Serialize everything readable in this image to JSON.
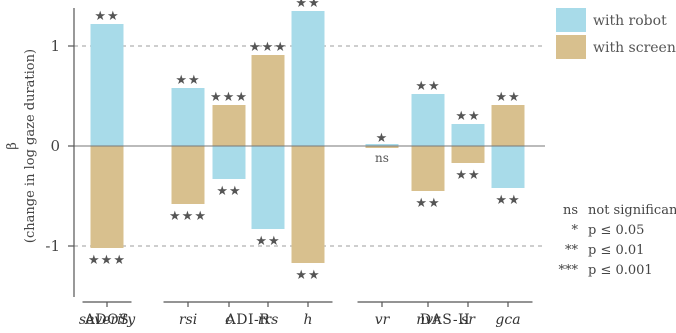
{
  "chart_data": {
    "type": "bar",
    "title": "",
    "ylabel_line1": "β",
    "ylabel_line2": "(change in log gaze duration)",
    "ylim": [
      -1.4,
      1.4
    ],
    "yticks": [
      {
        "value": 1,
        "label": "1"
      },
      {
        "value": 0,
        "label": "0"
      },
      {
        "value": -1,
        "label": "-1"
      }
    ],
    "reference_lines": [
      1,
      -1
    ],
    "colors": {
      "robot": "#a8dbe9",
      "screen": "#d8c08e",
      "axis": "#555555",
      "refline": "#b0b0b0",
      "zero": "#777777"
    },
    "categories": [
      "severity",
      "rsi",
      "c",
      "rrs",
      "h",
      "vr",
      "nvr",
      "sr",
      "gca"
    ],
    "groups": [
      {
        "name": "ADOS",
        "categories": [
          "severity"
        ]
      },
      {
        "name": "ADI-R",
        "categories": [
          "rsi",
          "c",
          "rrs",
          "h"
        ]
      },
      {
        "name": "DAS-II",
        "categories": [
          "vr",
          "nvr",
          "sr",
          "gca"
        ]
      }
    ],
    "series": [
      {
        "name": "with robot",
        "key": "robot",
        "values": [
          1.22,
          0.58,
          -0.33,
          -0.83,
          1.35,
          0.02,
          0.52,
          0.22,
          -0.42
        ],
        "sig": [
          "**",
          "**",
          "**",
          "**",
          "**",
          "*",
          "**",
          "**",
          "**"
        ]
      },
      {
        "name": "with screen",
        "key": "screen",
        "values": [
          -1.02,
          -0.58,
          0.41,
          0.91,
          -1.17,
          -0.02,
          -0.45,
          -0.17,
          0.41
        ],
        "sig": [
          "***",
          "***",
          "***",
          "***",
          "**",
          "ns",
          "**",
          "**",
          "**"
        ]
      }
    ],
    "significance_key": [
      {
        "symbol": "ns",
        "meaning": "not significant"
      },
      {
        "symbol": "*",
        "meaning": "p ≤ 0.05"
      },
      {
        "symbol": "**",
        "meaning": "p ≤ 0.01"
      },
      {
        "symbol": "***",
        "meaning": "p ≤ 0.001"
      }
    ],
    "legend_position": "top-right",
    "grid": false
  }
}
